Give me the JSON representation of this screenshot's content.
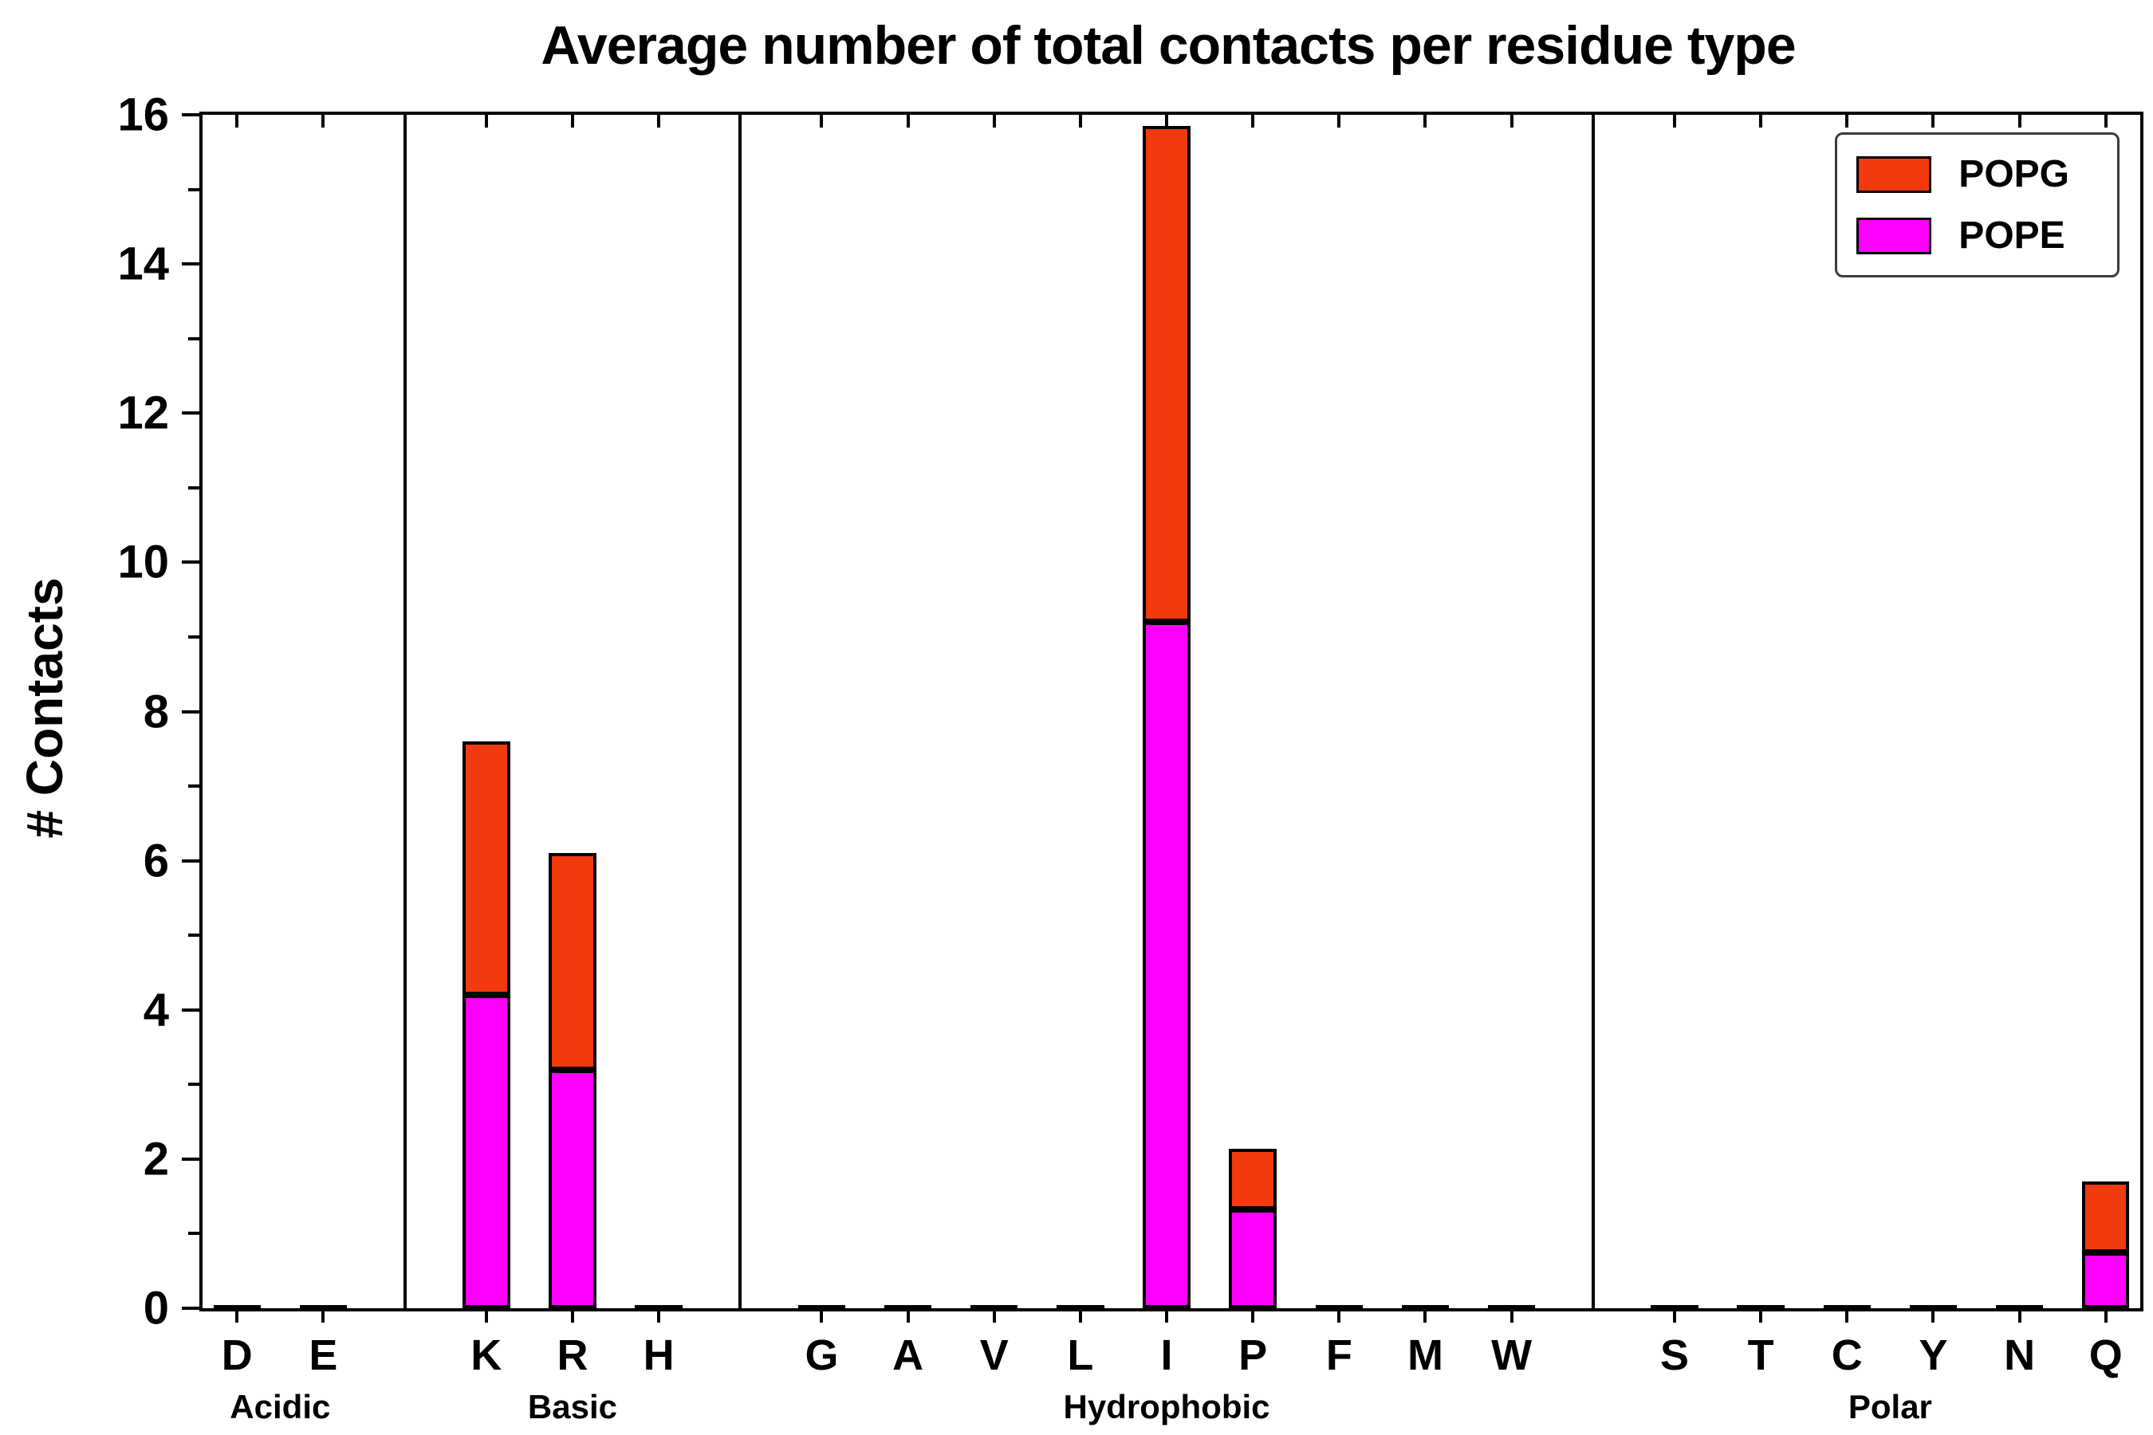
{
  "title": "Average number of total contacts per residue type",
  "ylabel": "# Contacts",
  "legend": [
    {
      "label": "POPG",
      "color": "#f13a0e"
    },
    {
      "label": "POPE",
      "color": "#ff00ff"
    }
  ],
  "chart_data": {
    "type": "bar",
    "stacked": true,
    "title": "Average number of total contacts per residue type",
    "xlabel": "",
    "ylabel": "# Contacts",
    "ylim": [
      0,
      16
    ],
    "ytick_step": 2,
    "legend_position": "upper right",
    "grid": false,
    "groups": [
      {
        "label": "Acidic",
        "categories": [
          "D",
          "E"
        ]
      },
      {
        "label": "Basic",
        "categories": [
          "K",
          "R",
          "H"
        ]
      },
      {
        "label": "Hydrophobic",
        "categories": [
          "G",
          "A",
          "V",
          "L",
          "I",
          "P",
          "F",
          "M",
          "W"
        ]
      },
      {
        "label": "Polar",
        "categories": [
          "S",
          "T",
          "C",
          "Y",
          "N",
          "Q"
        ]
      }
    ],
    "categories": [
      "D",
      "E",
      "K",
      "R",
      "H",
      "G",
      "A",
      "V",
      "L",
      "I",
      "P",
      "F",
      "M",
      "W",
      "S",
      "T",
      "C",
      "Y",
      "N",
      "Q"
    ],
    "series": [
      {
        "name": "POPE",
        "color": "#ff00ff",
        "values": [
          0,
          0,
          4.2,
          3.2,
          0,
          0,
          0,
          0,
          0,
          9.2,
          1.32,
          0,
          0,
          0,
          0,
          0,
          0,
          0,
          0,
          0.75
        ]
      },
      {
        "name": "POPG",
        "color": "#f13a0e",
        "values": [
          0,
          0,
          3.4,
          2.9,
          0,
          0,
          0,
          0,
          0,
          6.65,
          0.82,
          0,
          0,
          0,
          0,
          0,
          0,
          0,
          0,
          0.95
        ]
      }
    ]
  }
}
